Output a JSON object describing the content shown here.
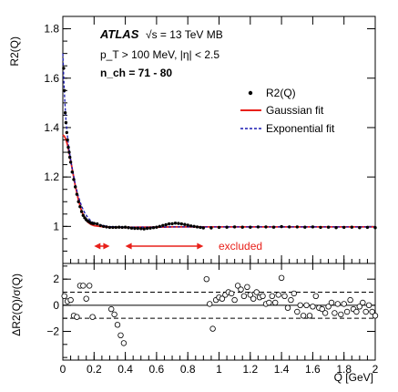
{
  "chart_data": [
    {
      "type": "scatter",
      "experiment": "ATLAS",
      "energy_label": "√s = 13 TeV MB",
      "cuts_label": "p_T > 100 MeV, |η| < 2.5",
      "nch_label": "n_ch = 71 - 80",
      "ylabel": "R2(Q)",
      "xlim": [
        0,
        2
      ],
      "ylim": [
        0.85,
        1.85
      ],
      "yticks": [
        1,
        1.2,
        1.4,
        1.6,
        1.8
      ],
      "xticks": [
        0,
        0.2,
        0.4,
        0.6,
        0.8,
        1,
        1.2,
        1.4,
        1.6,
        1.8,
        2
      ],
      "legend_position": "top-right",
      "legend": [
        {
          "label": "R2(Q)",
          "style": "marker",
          "color": "#000000"
        },
        {
          "label": "Gaussian fit",
          "style": "solid-line",
          "color": "#e8201a"
        },
        {
          "label": "Exponential fit",
          "style": "dashed-line",
          "color": "#1a1ab4"
        }
      ],
      "excluded_label": "excluded",
      "excluded_ranges": [
        [
          0.2,
          0.3
        ],
        [
          0.4,
          0.9
        ]
      ],
      "series": [
        {
          "name": "R2(Q)",
          "kind": "points",
          "color": "#000000",
          "x": [
            0.005,
            0.01,
            0.015,
            0.02,
            0.025,
            0.03,
            0.035,
            0.04,
            0.045,
            0.05,
            0.06,
            0.07,
            0.08,
            0.09,
            0.1,
            0.11,
            0.12,
            0.13,
            0.14,
            0.15,
            0.16,
            0.17,
            0.18,
            0.19,
            0.2,
            0.22,
            0.24,
            0.26,
            0.28,
            0.3,
            0.32,
            0.34,
            0.36,
            0.38,
            0.4,
            0.42,
            0.44,
            0.46,
            0.48,
            0.5,
            0.52,
            0.54,
            0.56,
            0.58,
            0.6,
            0.62,
            0.64,
            0.66,
            0.68,
            0.7,
            0.72,
            0.74,
            0.76,
            0.78,
            0.8,
            0.82,
            0.84,
            0.86,
            0.88,
            0.9,
            0.95,
            1.0,
            1.05,
            1.1,
            1.15,
            1.2,
            1.25,
            1.3,
            1.35,
            1.4,
            1.45,
            1.5,
            1.55,
            1.6,
            1.65,
            1.7,
            1.75,
            1.8,
            1.85,
            1.9,
            1.95,
            2.0
          ],
          "y": [
            1.64,
            1.55,
            1.46,
            1.42,
            1.38,
            1.35,
            1.32,
            1.3,
            1.28,
            1.26,
            1.22,
            1.19,
            1.16,
            1.13,
            1.1,
            1.08,
            1.06,
            1.045,
            1.035,
            1.027,
            1.022,
            1.018,
            1.014,
            1.012,
            1.012,
            1.01,
            1.004,
            1.0,
            0.998,
            0.996,
            0.996,
            0.996,
            0.997,
            0.996,
            0.997,
            0.995,
            0.993,
            0.992,
            0.992,
            0.991,
            0.99,
            0.992,
            0.993,
            0.995,
            0.997,
            1.0,
            1.004,
            1.007,
            1.01,
            1.011,
            1.013,
            1.012,
            1.01,
            1.008,
            1.005,
            1.002,
            1.0,
            0.998,
            0.996,
            0.994,
            0.994,
            0.996,
            0.997,
            0.998,
            0.997,
            0.997,
            0.998,
            0.998,
            0.997,
            0.999,
            0.998,
            0.998,
            0.997,
            0.998,
            0.996,
            0.997,
            0.995,
            0.996,
            0.997,
            0.995,
            0.996,
            0.995
          ]
        },
        {
          "name": "Gaussian fit",
          "kind": "line",
          "color": "#e8201a",
          "dash": "",
          "x": [
            0.0,
            0.01,
            0.02,
            0.03,
            0.04,
            0.05,
            0.06,
            0.08,
            0.1,
            0.12,
            0.14,
            0.16,
            0.18,
            0.2,
            0.25,
            0.3,
            0.4,
            0.5,
            0.6,
            0.7,
            0.8,
            0.9,
            1.0,
            1.2,
            1.4,
            1.6,
            1.8,
            2.0
          ],
          "y": [
            1.37,
            1.365,
            1.352,
            1.33,
            1.3,
            1.267,
            1.232,
            1.164,
            1.106,
            1.062,
            1.034,
            1.017,
            1.008,
            1.003,
            0.999,
            0.997,
            0.996,
            0.997,
            0.997,
            0.998,
            0.998,
            0.998,
            0.998,
            0.998,
            0.998,
            0.998,
            0.998,
            0.998
          ]
        },
        {
          "name": "Exponential fit",
          "kind": "line",
          "color": "#1a1ab4",
          "dash": "3,2",
          "x": [
            0.0,
            0.005,
            0.01,
            0.015,
            0.02,
            0.03,
            0.04,
            0.05,
            0.06,
            0.08,
            0.1,
            0.12,
            0.14,
            0.16,
            0.18,
            0.2,
            0.25,
            0.3,
            0.4,
            0.5,
            0.6,
            0.7,
            0.8,
            0.9,
            1.0,
            1.2,
            1.4,
            1.6,
            1.8,
            2.0
          ],
          "y": [
            1.7,
            1.61,
            1.54,
            1.48,
            1.43,
            1.365,
            1.31,
            1.27,
            1.234,
            1.17,
            1.12,
            1.082,
            1.055,
            1.036,
            1.022,
            1.013,
            1.004,
            0.999,
            0.997,
            0.997,
            0.997,
            0.998,
            0.998,
            0.998,
            0.998,
            0.998,
            0.998,
            0.998,
            0.998,
            0.998
          ]
        }
      ]
    },
    {
      "type": "scatter",
      "ylabel": "ΔR2(Q)/σ(Q)",
      "xlabel": "Q [GeV]",
      "xlim": [
        0,
        2
      ],
      "ylim": [
        -4.2,
        3.2
      ],
      "yticks": [
        -2,
        0,
        2
      ],
      "xticks": [
        0,
        0.2,
        0.4,
        0.6,
        0.8,
        1,
        1.2,
        1.4,
        1.6,
        1.8,
        2
      ],
      "tick_labels": [
        "0",
        "0.2",
        "0.4",
        "0.6",
        "0.8",
        "1",
        "1.2",
        "1.4",
        "1.6",
        "1.8",
        "2"
      ],
      "ytick_labels": [
        "−2",
        "0",
        "2"
      ],
      "reference_lines": [
        {
          "y": 0,
          "style": "solid"
        },
        {
          "y": 1,
          "style": "dashed"
        },
        {
          "y": -1,
          "style": "dashed"
        }
      ],
      "series": [
        {
          "name": "",
          "kind": "open-markers",
          "color": "#000000",
          "x": [
            0.01,
            0.03,
            0.05,
            0.07,
            0.09,
            0.11,
            0.13,
            0.15,
            0.17,
            0.19,
            0.31,
            0.33,
            0.35,
            0.37,
            0.39,
            0.92,
            0.94,
            0.96,
            0.98,
            1.0,
            1.02,
            1.04,
            1.06,
            1.08,
            1.1,
            1.12,
            1.14,
            1.16,
            1.18,
            1.2,
            1.22,
            1.24,
            1.26,
            1.28,
            1.3,
            1.32,
            1.34,
            1.36,
            1.38,
            1.4,
            1.42,
            1.44,
            1.46,
            1.48,
            1.5,
            1.52,
            1.54,
            1.56,
            1.58,
            1.6,
            1.62,
            1.64,
            1.66,
            1.68,
            1.7,
            1.72,
            1.74,
            1.76,
            1.78,
            1.8,
            1.82,
            1.84,
            1.86,
            1.88,
            1.9,
            1.92,
            1.94,
            1.96,
            1.98,
            2.0
          ],
          "y": [
            0.7,
            0.3,
            0.4,
            -0.8,
            -0.9,
            1.5,
            1.5,
            0.5,
            1.5,
            -0.9,
            -0.3,
            -0.7,
            -1.5,
            -2.3,
            -2.9,
            2.0,
            0.1,
            -1.8,
            0.4,
            0.6,
            0.5,
            0.8,
            1.0,
            0.9,
            0.4,
            1.5,
            1.2,
            0.7,
            1.4,
            0.8,
            0.5,
            1.0,
            0.6,
            0.7,
            0.1,
            0.2,
            0.7,
            0.2,
            0.8,
            2.1,
            0.7,
            -0.2,
            0.4,
            0.9,
            -0.5,
            0.0,
            -0.8,
            0.0,
            -0.8,
            -0.1,
            0.7,
            -0.2,
            -0.3,
            -0.6,
            -0.1,
            0.2,
            -0.6,
            0.1,
            -0.7,
            0.1,
            -0.5,
            0.4,
            -0.3,
            -0.5,
            -0.1,
            0.2,
            -0.5,
            0.0,
            -0.5,
            -0.8
          ]
        }
      ]
    }
  ]
}
